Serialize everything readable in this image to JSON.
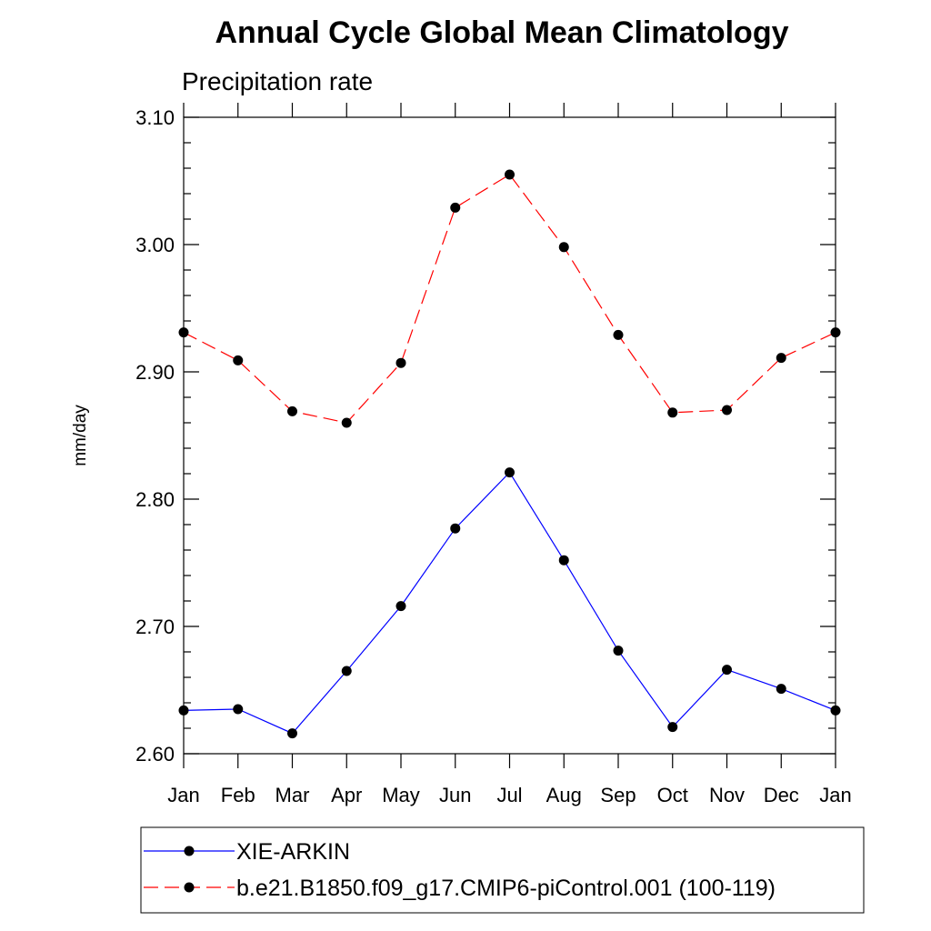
{
  "chart_data": {
    "type": "line",
    "title": "Annual Cycle Global Mean Climatology",
    "subtitle": "Precipitation rate",
    "xlabel": "",
    "ylabel": "mm/day",
    "categories": [
      "Jan",
      "Feb",
      "Mar",
      "Apr",
      "May",
      "Jun",
      "Jul",
      "Aug",
      "Sep",
      "Oct",
      "Nov",
      "Dec",
      "Jan"
    ],
    "ylim": [
      2.6,
      3.1
    ],
    "yticks": [
      2.6,
      2.7,
      2.8,
      2.9,
      3.0,
      3.1
    ],
    "ytick_labels": [
      "2.60",
      "2.70",
      "2.80",
      "2.90",
      "3.00",
      "3.10"
    ],
    "grid": false,
    "legend_position": "bottom",
    "series": [
      {
        "name": "XIE-ARKIN",
        "color": "#0000ff",
        "dash": "solid",
        "values": [
          2.634,
          2.635,
          2.616,
          2.665,
          2.716,
          2.777,
          2.821,
          2.752,
          2.681,
          2.621,
          2.666,
          2.651,
          2.634
        ]
      },
      {
        "name": "b.e21.B1850.f09_g17.CMIP6-piControl.001 (100-119)",
        "color": "#ff0000",
        "dash": "dashed",
        "values": [
          2.931,
          2.909,
          2.869,
          2.86,
          2.907,
          3.029,
          3.055,
          2.998,
          2.929,
          2.868,
          2.87,
          2.911,
          2.931
        ]
      }
    ]
  }
}
